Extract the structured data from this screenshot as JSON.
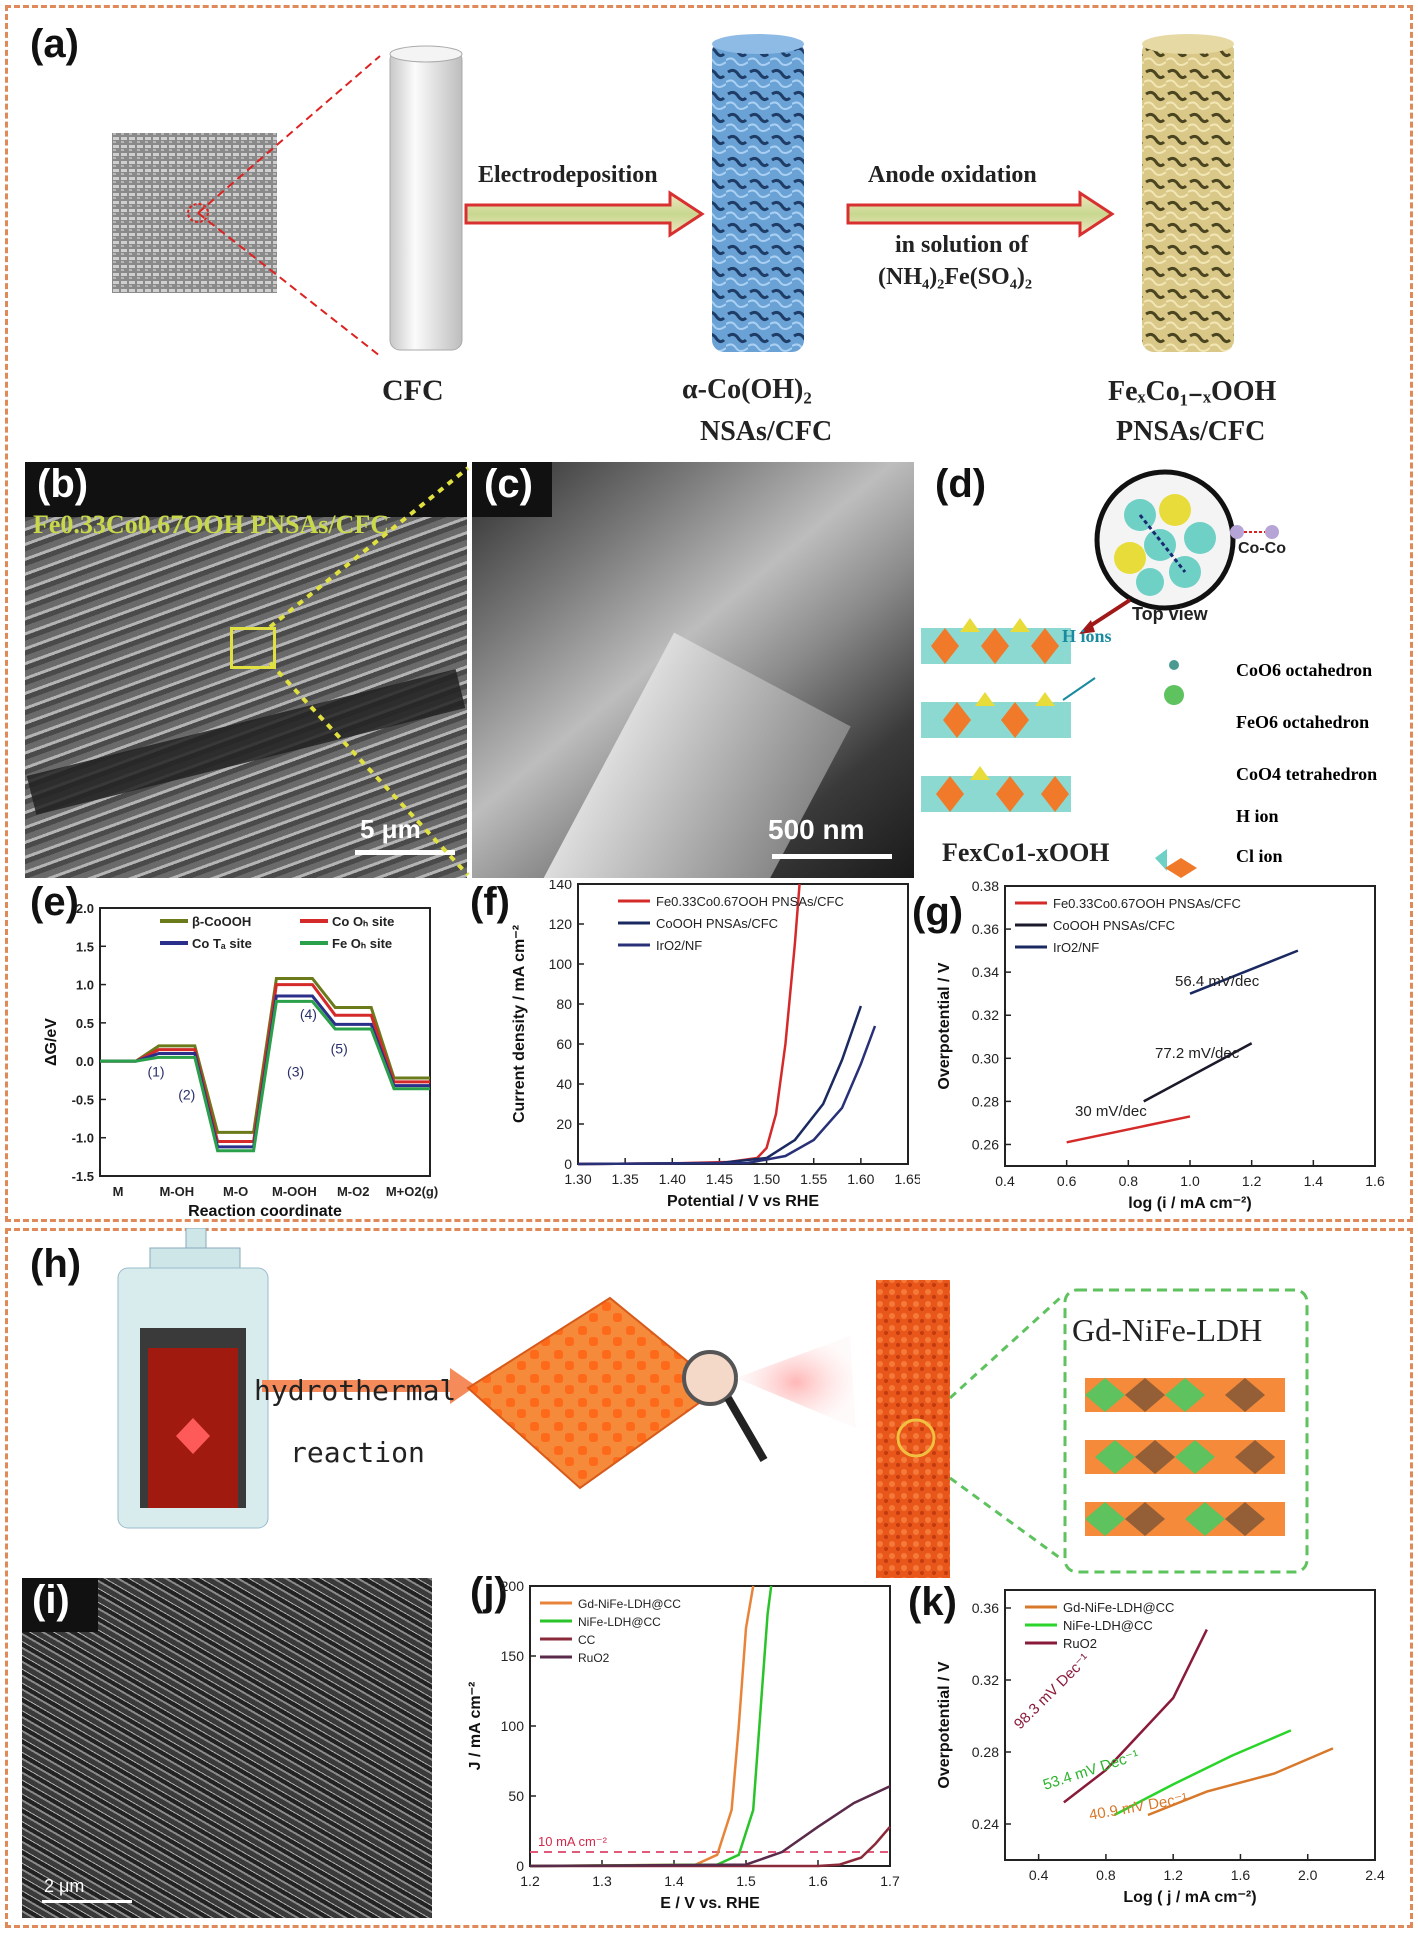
{
  "panel_labels": {
    "a": "(a)",
    "b": "(b)",
    "c": "(c)",
    "d": "(d)",
    "e": "(e)",
    "f": "(f)",
    "g": "(g)",
    "h": "(h)",
    "i": "(i)",
    "j": "(j)",
    "k": "(k)"
  },
  "panel_a": {
    "arrow1": "Electrodeposition",
    "arrow2_line1": "Anode oxidation",
    "arrow2_line2": "in solution of",
    "arrow2_line3": "(NH₄)₂Fe(SO₄)₂",
    "cfc": "CFC",
    "coh_line1": "α-Co(OH)₂",
    "coh_line2": "NSAs/CFC",
    "feco_line1": "FeₓCo₁₋ₓOOH",
    "feco_line2": "PNSAs/CFC"
  },
  "panel_b": {
    "title": "Fe0.33Co0.67OOH PNSAs/CFC",
    "scale": "5 μm"
  },
  "panel_c": {
    "scale": "500 nm"
  },
  "panel_d": {
    "co_co": "Co-Co",
    "top_view": "Top view",
    "h_ions": "H ions",
    "formula": "FexCo1-xOOH",
    "legend": [
      "CoO6 octahedron",
      "FeO6 octahedron",
      "CoO4 tetrahedron",
      "H ion",
      "Cl ion"
    ],
    "colors": {
      "co": "#6fd0c6",
      "fe": "#f07a2a",
      "tet": "#e8dc3a",
      "h": "#4a9a92",
      "cl": "#5ec25e"
    }
  },
  "panel_h": {
    "arrow_line1": "hydrothermal",
    "arrow_line2": "reaction",
    "box_title": "Gd-NiFe-LDH"
  },
  "panel_i": {
    "scale": "2 μm"
  },
  "chart_data": [
    {
      "panel": "e",
      "type": "line",
      "title": "",
      "xlabel": "Reaction coordinate",
      "ylabel": "ΔG/eV",
      "categories": [
        "M",
        "M-OH",
        "M-O",
        "M-OOH",
        "M-O2",
        "M+O2(g)"
      ],
      "ylim": [
        -1.5,
        2.0
      ],
      "yticks": [
        "2.0",
        "1.5",
        "1.0",
        "0.5",
        "0.0",
        "-0.5",
        "-1.0",
        "-1.5"
      ],
      "step_labels": [
        "(1)",
        "(2)",
        "(3)",
        "(4)",
        "(5)"
      ],
      "series": [
        {
          "name": "β-CoOOH",
          "color": "#6b7a1a",
          "values": [
            0,
            0.2,
            -0.93,
            1.08,
            0.7,
            -0.22
          ]
        },
        {
          "name": "Co Oₕ site",
          "color": "#d42a2a",
          "values": [
            0,
            0.15,
            -1.05,
            1.0,
            0.6,
            -0.27
          ]
        },
        {
          "name": "Co Tₐ site",
          "color": "#2a2f8a",
          "values": [
            0,
            0.1,
            -1.12,
            0.85,
            0.48,
            -0.32
          ]
        },
        {
          "name": "Fe Oₕ site",
          "color": "#2aa04a",
          "values": [
            0,
            0.05,
            -1.17,
            0.78,
            0.42,
            -0.36
          ]
        }
      ]
    },
    {
      "panel": "f",
      "type": "line",
      "title": "",
      "xlabel": "Potential / V vs RHE",
      "ylabel": "Current density / mA cm⁻²",
      "xlim": [
        1.3,
        1.65
      ],
      "ylim": [
        0,
        140
      ],
      "xticks": [
        "1.30",
        "1.35",
        "1.40",
        "1.45",
        "1.50",
        "1.55",
        "1.60",
        "1.65"
      ],
      "yticks": [
        "0",
        "20",
        "40",
        "60",
        "80",
        "100",
        "120",
        "140"
      ],
      "series": [
        {
          "name": "Fe0.33Co0.67OOH PNSAs/CFC",
          "color": "#d42a2a",
          "x": [
            1.3,
            1.4,
            1.46,
            1.49,
            1.5,
            1.51,
            1.52,
            1.53,
            1.535
          ],
          "y": [
            0,
            0.3,
            1,
            3,
            8,
            25,
            60,
            110,
            140
          ]
        },
        {
          "name": "CoOOH PNSAs/CFC",
          "color": "#1a2a60",
          "x": [
            1.3,
            1.45,
            1.5,
            1.53,
            1.56,
            1.58,
            1.6
          ],
          "y": [
            0,
            0.5,
            3,
            12,
            30,
            52,
            79
          ]
        },
        {
          "name": "IrO2/NF",
          "color": "#283078",
          "x": [
            1.3,
            1.48,
            1.52,
            1.55,
            1.58,
            1.6,
            1.615
          ],
          "y": [
            0,
            0.5,
            4,
            12,
            28,
            50,
            69
          ]
        }
      ]
    },
    {
      "panel": "g",
      "type": "line",
      "title": "",
      "xlabel": "log (i / mA cm⁻²)",
      "ylabel": "Overpotential / V",
      "xlim": [
        0.4,
        1.6
      ],
      "ylim": [
        0.25,
        0.38
      ],
      "xticks": [
        "0.4",
        "0.6",
        "0.8",
        "1.0",
        "1.2",
        "1.4",
        "1.6"
      ],
      "yticks": [
        "0.38",
        "0.36",
        "0.34",
        "0.32",
        "0.30",
        "0.28",
        "0.26"
      ],
      "annotations": [
        "56.4 mV/dec",
        "77.2 mV/dec",
        "30 mV/dec"
      ],
      "series": [
        {
          "name": "Fe0.33Co0.67OOH PNSAs/CFC",
          "color": "#d42a2a",
          "x": [
            0.6,
            1.0
          ],
          "y": [
            0.261,
            0.273
          ]
        },
        {
          "name": "CoOOH PNSAs/CFC",
          "color": "#1a1a2a",
          "x": [
            0.85,
            1.2
          ],
          "y": [
            0.28,
            0.307
          ]
        },
        {
          "name": "IrO2/NF",
          "color": "#1a2a60",
          "x": [
            1.0,
            1.35
          ],
          "y": [
            0.33,
            0.35
          ]
        }
      ]
    },
    {
      "panel": "j",
      "type": "line",
      "title": "",
      "xlabel": "E / V vs. RHE",
      "ylabel": "J / mA cm⁻²",
      "xlim": [
        1.2,
        1.7
      ],
      "ylim": [
        0,
        200
      ],
      "xticks": [
        "1.2",
        "1.3",
        "1.4",
        "1.5",
        "1.6",
        "1.7"
      ],
      "yticks": [
        "0",
        "50",
        "100",
        "150",
        "200"
      ],
      "ref_line": {
        "y": 10,
        "label": "10 mA cm⁻²"
      },
      "series": [
        {
          "name": "Gd-NiFe-LDH@CC",
          "color": "#e8843a",
          "x": [
            1.2,
            1.43,
            1.46,
            1.48,
            1.49,
            1.5,
            1.51
          ],
          "y": [
            0,
            1,
            8,
            40,
            100,
            170,
            200
          ]
        },
        {
          "name": "NiFe-LDH@CC",
          "color": "#2ac42a",
          "x": [
            1.2,
            1.46,
            1.49,
            1.51,
            1.52,
            1.53,
            1.535
          ],
          "y": [
            0,
            1,
            8,
            40,
            110,
            180,
            200
          ]
        },
        {
          "name": "CC",
          "color": "#8a2a3a",
          "x": [
            1.2,
            1.6,
            1.63,
            1.66,
            1.68,
            1.7
          ],
          "y": [
            0,
            0,
            1,
            6,
            16,
            28
          ]
        },
        {
          "name": "RuO2",
          "color": "#5a2a4a",
          "x": [
            1.2,
            1.5,
            1.55,
            1.6,
            1.65,
            1.7
          ],
          "y": [
            0,
            1,
            10,
            28,
            45,
            57
          ]
        }
      ]
    },
    {
      "panel": "k",
      "type": "line",
      "title": "",
      "xlabel": "Log ( j / mA cm⁻²)",
      "ylabel": "Overpotential / V",
      "xlim": [
        0.2,
        2.4
      ],
      "ylim": [
        0.22,
        0.37
      ],
      "xticks": [
        "0.4",
        "0.8",
        "1.2",
        "1.6",
        "2.0",
        "2.4"
      ],
      "yticks": [
        "0.36",
        "0.32",
        "0.28",
        "0.24"
      ],
      "annotations": [
        "98.3 mV Dec⁻¹",
        "53.4 mV Dec⁻¹",
        "40.9 mV Dec⁻¹"
      ],
      "series": [
        {
          "name": "Gd-NiFe-LDH@CC",
          "color": "#d8782a",
          "x": [
            1.05,
            1.4,
            1.8,
            2.15
          ],
          "y": [
            0.245,
            0.258,
            0.268,
            0.282
          ]
        },
        {
          "name": "NiFe-LDH@CC",
          "color": "#2ad42a",
          "x": [
            0.85,
            1.2,
            1.55,
            1.9
          ],
          "y": [
            0.245,
            0.262,
            0.278,
            0.292
          ]
        },
        {
          "name": "RuO2",
          "color": "#8a1a3a",
          "x": [
            0.55,
            0.8,
            1.0,
            1.2,
            1.4
          ],
          "y": [
            0.252,
            0.27,
            0.29,
            0.31,
            0.348
          ]
        }
      ]
    }
  ]
}
